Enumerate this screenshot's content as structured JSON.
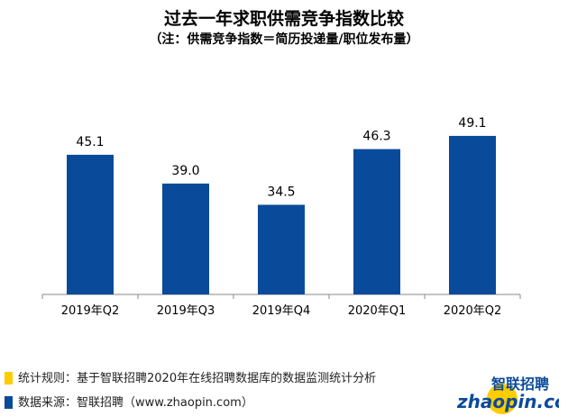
{
  "chart_data": {
    "type": "bar",
    "title": "过去一年求职供需竞争指数比较",
    "subtitle": "（注：供需竞争指数＝简历投递量/职位发布量）",
    "categories": [
      "2019年Q2",
      "2019年Q3",
      "2019年Q4",
      "2020年Q1",
      "2020年Q2"
    ],
    "values": [
      45.1,
      39.0,
      34.5,
      46.3,
      49.1
    ],
    "value_labels": [
      "45.1",
      "39.0",
      "34.5",
      "46.3",
      "49.1"
    ],
    "ylim": [
      15.5,
      55
    ],
    "bar_color": "#0a4a9a"
  },
  "notes": [
    {
      "text": "统计规则：基于智联招聘2020年在线招聘数据库的数据监测统计分析",
      "color": "#ffcc00"
    },
    {
      "text": "数据来源：智联招聘（www.zhaopin.com）",
      "color": "#0a4a9a"
    }
  ],
  "logo": {
    "cn": "智联招聘",
    "en": "zhaopin.com"
  }
}
